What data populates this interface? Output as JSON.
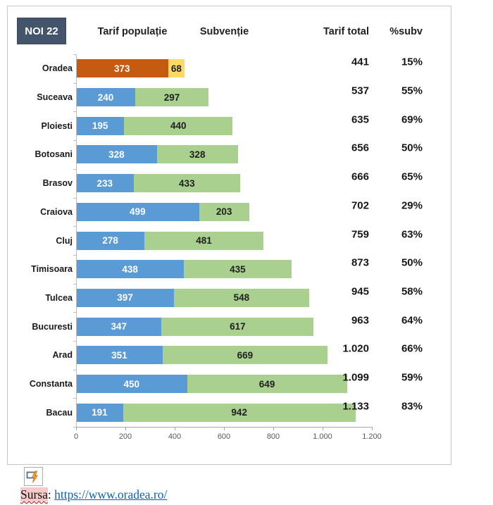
{
  "frame": {
    "badge": "NOI 22",
    "columns": {
      "tarif": "Tarif populație",
      "subventie": "Subvenție",
      "total": "Tarif total",
      "pct": "%subv"
    }
  },
  "chart_data": {
    "type": "bar",
    "orientation": "horizontal",
    "stacked": true,
    "title": "",
    "categories": [
      "Oradea",
      "Suceava",
      "Ploiesti",
      "Botosani",
      "Brasov",
      "Craiova",
      "Cluj",
      "Timisoara",
      "Tulcea",
      "Bucuresti",
      "Arad",
      "Constanta",
      "Bacau"
    ],
    "series": [
      {
        "name": "Tarif populație",
        "values": [
          373,
          240,
          195,
          328,
          233,
          499,
          278,
          438,
          397,
          347,
          351,
          450,
          191
        ]
      },
      {
        "name": "Subvenție",
        "values": [
          68,
          297,
          440,
          328,
          433,
          203,
          481,
          435,
          548,
          617,
          669,
          649,
          942
        ]
      }
    ],
    "totals": [
      "441",
      "537",
      "635",
      "656",
      "666",
      "702",
      "759",
      "873",
      "945",
      "963",
      "1.020",
      "1.099",
      "1.133"
    ],
    "pct_subv": [
      "15%",
      "55%",
      "69%",
      "50%",
      "65%",
      "29%",
      "63%",
      "50%",
      "58%",
      "64%",
      "66%",
      "59%",
      "83%"
    ],
    "xlim": [
      0,
      1200
    ],
    "x_ticks": [
      {
        "value": 0,
        "label": "0"
      },
      {
        "value": 200,
        "label": "200"
      },
      {
        "value": 400,
        "label": "400"
      },
      {
        "value": 600,
        "label": "600"
      },
      {
        "value": 800,
        "label": "800"
      },
      {
        "value": 1000,
        "label": "1.000"
      },
      {
        "value": 1200,
        "label": "1.200"
      }
    ],
    "highlight_row": 0,
    "grid": false,
    "legend_position": "column-headers-top",
    "colors": {
      "series1": "#5B9BD5",
      "series2": "#A9D08E",
      "highlight1": "#C55A11",
      "highlight2": "#FFD966",
      "badge_bg": "#44546A",
      "axis": "#A6A6A6",
      "tick_text": "#595959"
    }
  },
  "footer": {
    "icon": "autocorrect-lightning-icon",
    "source_label": "Sursa",
    "separator": ": ",
    "source_link": "https://www.oradea.ro/",
    "link_color": "#0563C1"
  }
}
